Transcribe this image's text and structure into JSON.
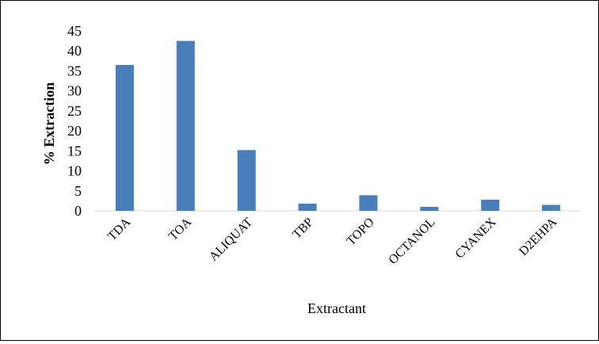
{
  "chart_data": {
    "type": "bar",
    "title": "",
    "xlabel": "Extractant",
    "ylabel": "% Extraction",
    "categories": [
      "TDA",
      "TOA",
      "ALIQUAT",
      "TBP",
      "TOPO",
      "OCTANOL",
      "CYANEX",
      "D2EHPA"
    ],
    "values": [
      36.5,
      42.5,
      15.2,
      1.8,
      3.9,
      1.0,
      2.8,
      1.5
    ],
    "ylim": [
      0,
      45
    ],
    "yticks": [
      0,
      5,
      10,
      15,
      20,
      25,
      30,
      35,
      40,
      45
    ],
    "grid": false,
    "legend": "none",
    "bar_color": "#4a7ebb"
  }
}
